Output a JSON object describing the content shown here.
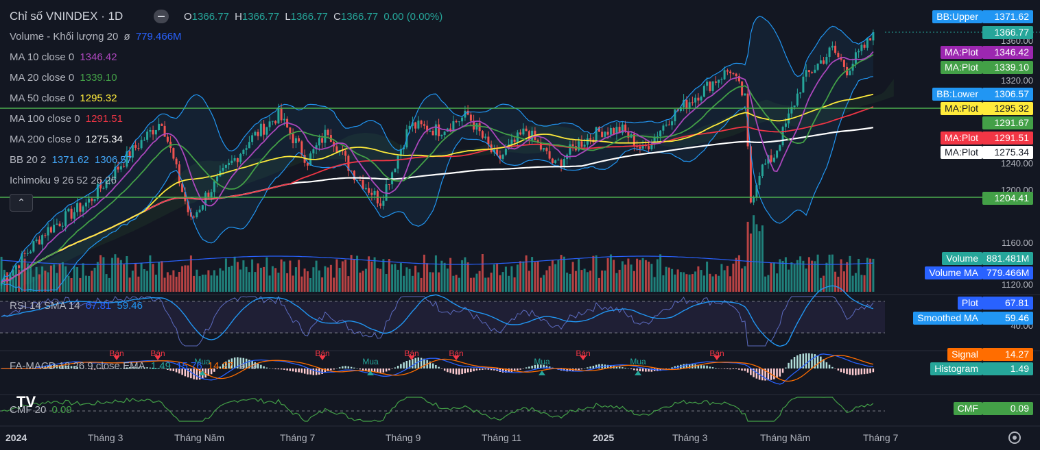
{
  "header": {
    "symbol": "Chỉ số VNINDEX · 1D",
    "o_label": "O",
    "o": "1366.77",
    "h_label": "H",
    "h": "1366.77",
    "l_label": "L",
    "l": "1366.77",
    "c_label": "C",
    "c": "1366.77",
    "change": "0.00 (0.00%)"
  },
  "legend": {
    "volume": {
      "label": "Volume - Khối lượng 20",
      "sym": "ø",
      "value": "779.466M"
    },
    "ma10": {
      "label": "MA 10 close 0",
      "value": "1346.42"
    },
    "ma20": {
      "label": "MA 20 close 0",
      "value": "1339.10"
    },
    "ma50": {
      "label": "MA 50 close 0",
      "value": "1295.32"
    },
    "ma100": {
      "label": "MA 100 close 0",
      "value": "1291.51"
    },
    "ma200": {
      "label": "MA 200 close 0",
      "value": "1275.34"
    },
    "bb": {
      "label": "BB 20 2",
      "upper": "1371.62",
      "lower": "1306.57"
    },
    "ichimoku": {
      "label": "Ichimoku 9 26 52 26 26"
    }
  },
  "rsi": {
    "label": "RSI 14 SMA 14",
    "v1": "67.81",
    "v2": "59.46"
  },
  "macd": {
    "label": "FA-MACD 12 26 9 close EMA",
    "v1": "1.49",
    "v2": "15.76",
    "v3": "14.27",
    "v4": "ø",
    "v5": "ø",
    "signals": [
      "Bán",
      "Bán",
      "Bán",
      "Bán",
      "Bán",
      "Bán",
      "Bán",
      "Mua",
      "Mua",
      "Mua",
      "Mua"
    ]
  },
  "cmf": {
    "label": "CMF 20",
    "value": "0.09"
  },
  "price_tags": [
    {
      "name": "BB:Upper",
      "value": "1371.62",
      "color": "#2196f3"
    },
    {
      "name": "",
      "value": "1366.77",
      "color": "#26a69a"
    },
    {
      "name": "MA:Plot",
      "value": "1346.42",
      "color": "#9c27b0"
    },
    {
      "name": "MA:Plot",
      "value": "1339.10",
      "color": "#43a047"
    },
    {
      "name": "BB:Lower",
      "value": "1306.57",
      "color": "#2196f3"
    },
    {
      "name": "MA:Plot",
      "value": "1295.32",
      "color": "#ffeb3b"
    },
    {
      "name": "",
      "value": "1291.67",
      "color": "#43a047"
    },
    {
      "name": "MA:Plot",
      "value": "1291.51",
      "color": "#f23645"
    },
    {
      "name": "MA:Plot",
      "value": "1275.34",
      "color": "#ffffff"
    },
    {
      "name": "",
      "value": "1204.41",
      "color": "#43a047"
    },
    {
      "name": "Volume",
      "value": "881.481M",
      "color": "#26a69a"
    },
    {
      "name": "Volume MA",
      "value": "779.466M",
      "color": "#2962ff"
    },
    {
      "name": "Plot",
      "value": "67.81",
      "color": "#2962ff"
    },
    {
      "name": "Smoothed MA",
      "value": "59.46",
      "color": "#2196f3"
    },
    {
      "name": "Signal",
      "value": "14.27",
      "color": "#ff6d00"
    },
    {
      "name": "Histogram",
      "value": "1.49",
      "color": "#26a69a"
    },
    {
      "name": "CMF",
      "value": "0.09",
      "color": "#43a047"
    }
  ],
  "price_axis": [
    "1360.00",
    "1320.00",
    "1240.00",
    "1200.00",
    "1160.00",
    "1120.00"
  ],
  "rsi_axis": [
    "40.00"
  ],
  "x_axis": [
    "2024",
    "Tháng 3",
    "Tháng Năm",
    "Tháng 7",
    "Tháng 9",
    "Tháng 11",
    "2025",
    "Tháng 3",
    "Tháng Năm",
    "Tháng 7"
  ],
  "logo": "TV",
  "colors": {
    "bg": "#131722",
    "up": "#26a69a",
    "down": "#ef5350",
    "hline": "#4caf50"
  },
  "chart_data": {
    "type": "line",
    "series": [
      {
        "name": "MA 10",
        "values": [
          1346.42
        ]
      },
      {
        "name": "MA 20",
        "values": [
          1339.1
        ]
      },
      {
        "name": "MA 50",
        "values": [
          1295.32
        ]
      },
      {
        "name": "MA 100",
        "values": [
          1291.51
        ]
      },
      {
        "name": "MA 200",
        "values": [
          1275.34
        ]
      }
    ],
    "horizontal_lines": [
      1291.67,
      1204.41
    ],
    "last_close": 1366.77,
    "bb_upper": 1371.62,
    "bb_lower": 1306.57
  }
}
